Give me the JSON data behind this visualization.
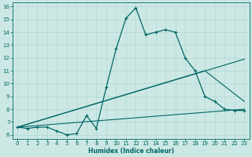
{
  "xlabel": "Humidex (Indice chaleur)",
  "background_color": "#cce8e4",
  "line_color": "#006666",
  "grid_color": "#b0d8d4",
  "xlim": [
    -0.5,
    23.5
  ],
  "ylim": [
    5.7,
    16.3
  ],
  "xticks": [
    0,
    1,
    2,
    3,
    4,
    5,
    6,
    7,
    8,
    9,
    10,
    11,
    12,
    13,
    14,
    15,
    16,
    17,
    18,
    19,
    20,
    21,
    22,
    23
  ],
  "yticks": [
    6,
    7,
    8,
    9,
    10,
    11,
    12,
    13,
    14,
    15,
    16
  ],
  "series1_x": [
    0,
    1,
    2,
    3,
    4,
    5,
    6,
    7,
    8,
    9,
    10,
    11,
    12,
    13,
    14,
    15,
    16,
    17,
    18,
    19,
    20,
    21,
    22,
    23
  ],
  "series1_y": [
    6.6,
    6.5,
    6.6,
    6.6,
    6.3,
    6.0,
    6.1,
    7.5,
    6.5,
    9.7,
    12.7,
    15.1,
    15.9,
    13.8,
    14.0,
    14.2,
    14.0,
    12.0,
    11.0,
    9.0,
    8.6,
    8.0,
    7.9,
    7.9
  ],
  "series2_x": [
    0,
    23
  ],
  "series2_y": [
    6.6,
    8.0
  ],
  "series3_x": [
    0,
    19,
    23
  ],
  "series3_y": [
    6.6,
    11.0,
    8.6
  ],
  "series4_x": [
    0,
    23
  ],
  "series4_y": [
    6.6,
    11.9
  ]
}
